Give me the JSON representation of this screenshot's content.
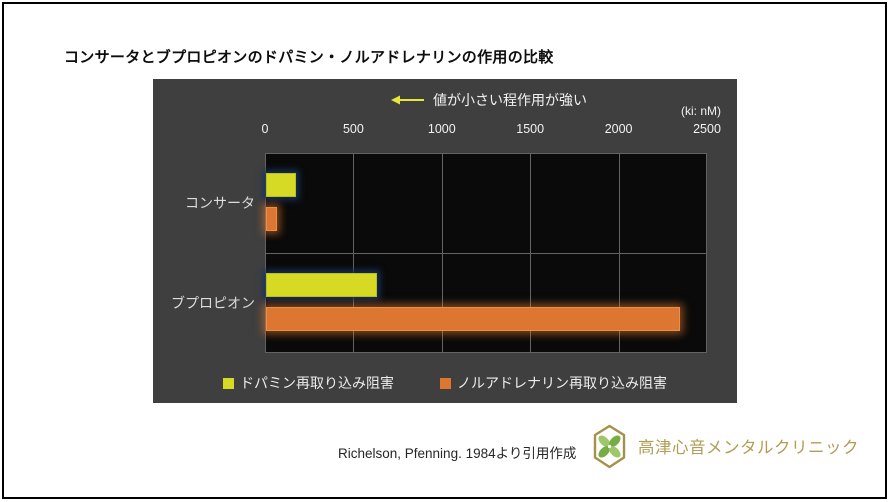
{
  "page": {
    "title": "コンサータとブプロピオンのドパミン・ノルアドレナリンの作用の比較",
    "footer": {
      "citation": "Richelson, Pfenning. 1984より引用作成",
      "clinic_name": "高津心音メンタルクリニック"
    }
  },
  "chart_data": {
    "type": "bar",
    "orientation": "horizontal",
    "title": "コンサータとブプロピオンのドパミン・ノルアドレナリンの作用の比較",
    "annotation": "値が小さい程作用が強い",
    "unit_label": "(ki: nM)",
    "categories": [
      "コンサータ",
      "ブプロピオン"
    ],
    "series": [
      {
        "name": "ドパミン再取り込み阻害",
        "color": "#d6da25",
        "values": [
          170,
          630
        ]
      },
      {
        "name": "ノルアドレナリン再取り込み阻害",
        "color": "#dd7630",
        "values": [
          60,
          2340
        ]
      }
    ],
    "x_ticks": [
      0,
      500,
      1000,
      1500,
      2000,
      2500
    ],
    "xlim": [
      0,
      2500
    ],
    "grid": true,
    "legend_position": "bottom",
    "panel_bg": "#3f3f3f",
    "plot_bg": "#0a0a0a"
  },
  "colors": {
    "dopamine_bar": "#d6da25",
    "noradrenaline_bar": "#dd7630",
    "dopamine_glow": "#18315e",
    "noradrenaline_glow": "#e77c30",
    "arrow": "#e6e73a",
    "grid": "#646464",
    "axis_text": "#f2f2f2",
    "logo_gold": "#a5914a",
    "logo_green_light": "#9fc76a",
    "logo_green_dark": "#78ad44"
  }
}
